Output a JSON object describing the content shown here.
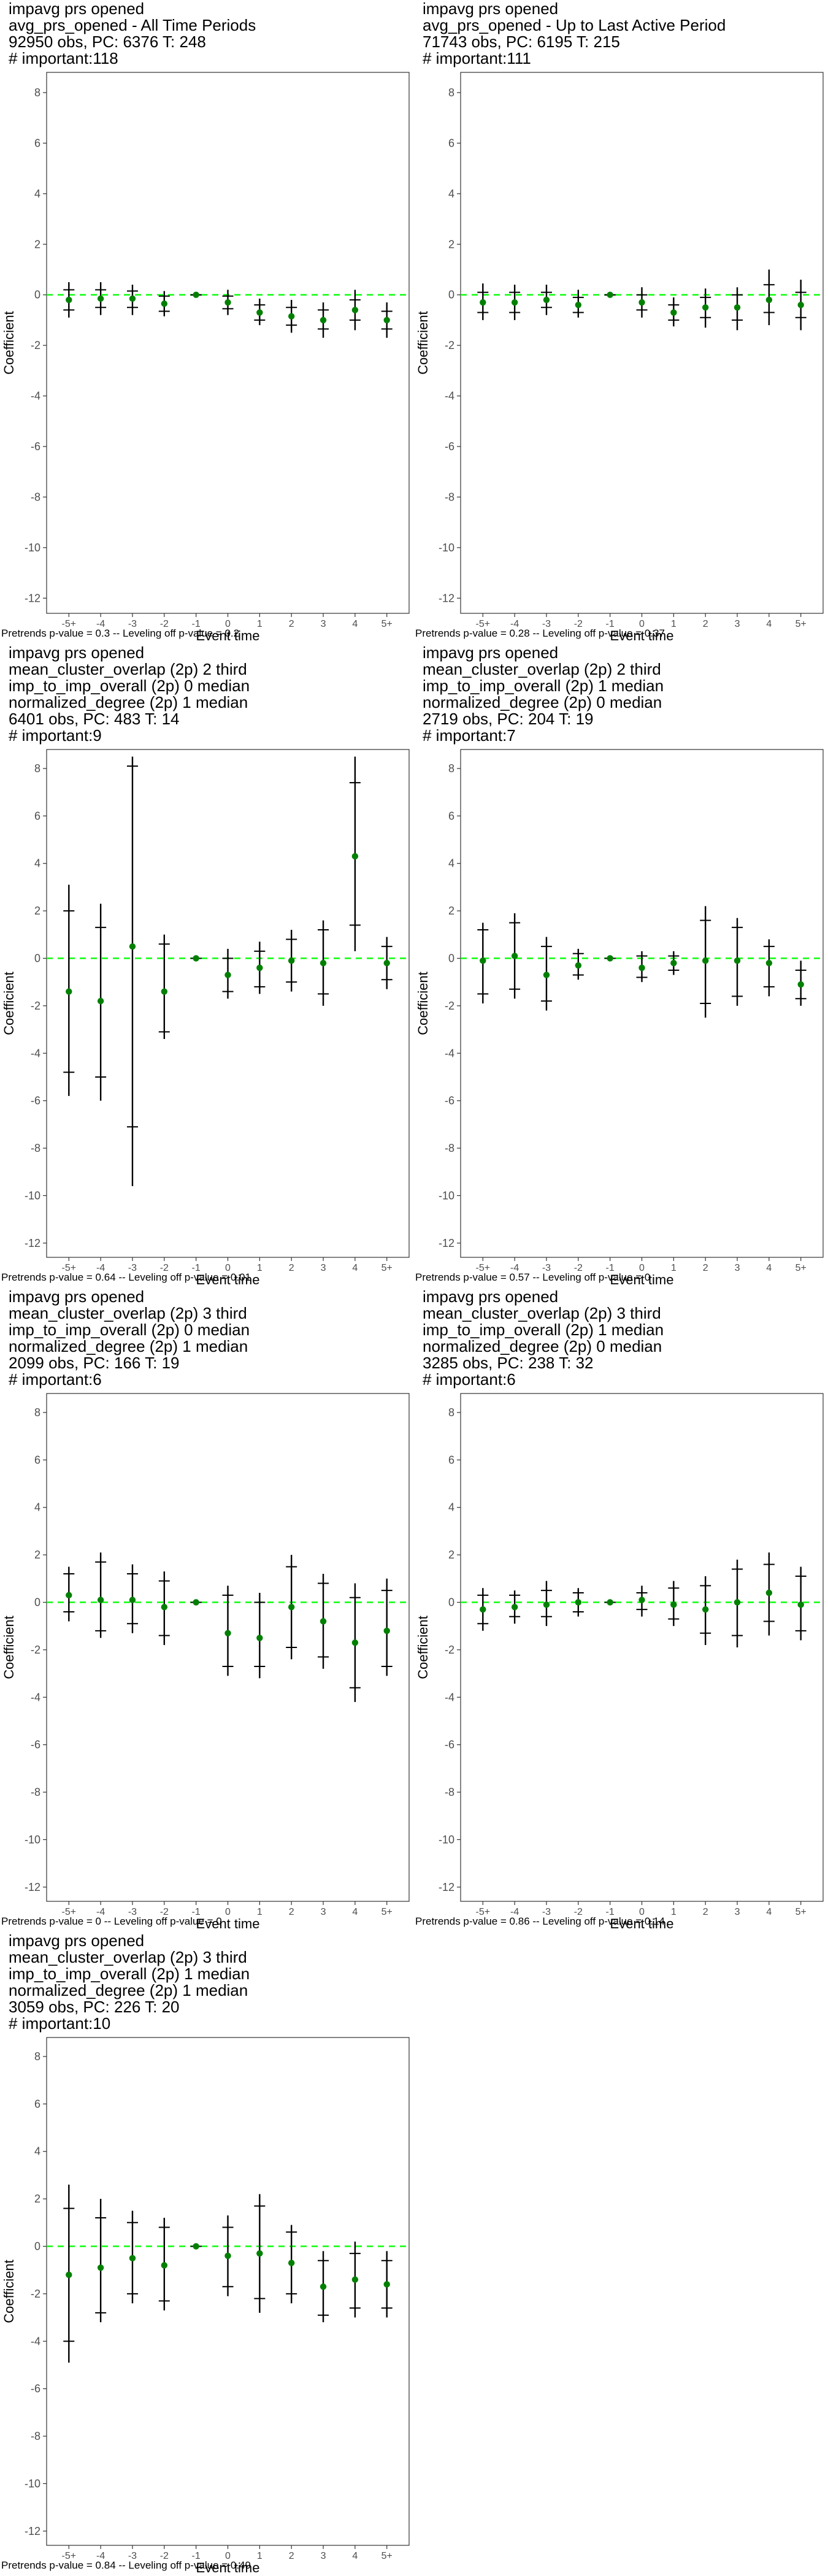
{
  "chart_data": [
    {
      "type": "scatter",
      "title_lines": [
        " impavg prs opened",
        "avg_prs_opened - All Time Periods",
        "92950 obs, PC: 6376 T: 248",
        "# important:118"
      ],
      "caption": "Pretrends p-value = 0.3 -- Leveling off p-value = 0.2",
      "xlabel": "Event time",
      "ylabel": "Coefficient",
      "categories": [
        "-5+",
        "-4",
        "-3",
        "-2",
        "-1",
        "0",
        "1",
        "2",
        "3",
        "4",
        "5+"
      ],
      "yticks": [
        8,
        6,
        4,
        2,
        0,
        -2,
        -4,
        -6,
        -8,
        -10,
        -12
      ],
      "ylim": [
        -12.6,
        8.8
      ],
      "series": [
        {
          "values": [
            -0.2,
            -0.15,
            -0.15,
            -0.35,
            0,
            -0.3,
            -0.7,
            -0.85,
            -1.0,
            -0.6,
            -1.0
          ],
          "ci_outer": [
            [
              -0.9,
              0.5
            ],
            [
              -0.8,
              0.5
            ],
            [
              -0.8,
              0.4
            ],
            [
              -0.85,
              0.15
            ],
            [
              0,
              0
            ],
            [
              -0.8,
              0.2
            ],
            [
              -1.2,
              -0.15
            ],
            [
              -1.5,
              -0.2
            ],
            [
              -1.7,
              -0.3
            ],
            [
              -1.4,
              0.2
            ],
            [
              -1.7,
              -0.3
            ]
          ],
          "ci_inner": [
            [
              -0.6,
              0.2
            ],
            [
              -0.5,
              0.2
            ],
            [
              -0.5,
              0.15
            ],
            [
              -0.65,
              -0.05
            ],
            [
              0,
              0
            ],
            [
              -0.55,
              -0.05
            ],
            [
              -1.0,
              -0.4
            ],
            [
              -1.2,
              -0.5
            ],
            [
              -1.35,
              -0.6
            ],
            [
              -1.0,
              -0.2
            ],
            [
              -1.35,
              -0.65
            ]
          ]
        }
      ]
    },
    {
      "type": "scatter",
      "title_lines": [
        " impavg prs opened",
        "avg_prs_opened - Up to Last Active Period",
        "71743 obs, PC: 6195 T: 215",
        "# important:111"
      ],
      "caption": "Pretrends p-value = 0.28 -- Leveling off p-value = 0.37",
      "xlabel": "Event time",
      "ylabel": "Coefficient",
      "categories": [
        "-5+",
        "-4",
        "-3",
        "-2",
        "-1",
        "0",
        "1",
        "2",
        "3",
        "4",
        "5+"
      ],
      "yticks": [
        8,
        6,
        4,
        2,
        0,
        -2,
        -4,
        -6,
        -8,
        -10,
        -12
      ],
      "ylim": [
        -12.6,
        8.8
      ],
      "series": [
        {
          "values": [
            -0.3,
            -0.3,
            -0.2,
            -0.4,
            0,
            -0.3,
            -0.7,
            -0.5,
            -0.5,
            -0.2,
            -0.4
          ],
          "ci_outer": [
            [
              -1.0,
              0.45
            ],
            [
              -1.0,
              0.4
            ],
            [
              -0.8,
              0.4
            ],
            [
              -0.9,
              0.2
            ],
            [
              0,
              0
            ],
            [
              -0.9,
              0.3
            ],
            [
              -1.25,
              -0.1
            ],
            [
              -1.3,
              0.25
            ],
            [
              -1.4,
              0.3
            ],
            [
              -1.2,
              1.0
            ],
            [
              -1.4,
              0.6
            ]
          ],
          "ci_inner": [
            [
              -0.7,
              0.1
            ],
            [
              -0.7,
              0.1
            ],
            [
              -0.5,
              0.1
            ],
            [
              -0.7,
              -0.1
            ],
            [
              0,
              0
            ],
            [
              -0.6,
              0.0
            ],
            [
              -1.0,
              -0.4
            ],
            [
              -0.9,
              -0.1
            ],
            [
              -1.0,
              0.0
            ],
            [
              -0.7,
              0.4
            ],
            [
              -0.9,
              0.1
            ]
          ]
        }
      ]
    },
    {
      "type": "scatter",
      "title_lines": [
        " impavg prs opened",
        "mean_cluster_overlap (2p) 2 third",
        "imp_to_imp_overall (2p) 0 median",
        "normalized_degree (2p) 1 median",
        "6401 obs, PC: 483 T: 14",
        "# important:9"
      ],
      "caption": "Pretrends p-value = 0.64 -- Leveling off p-value = 0.01",
      "xlabel": "Event time",
      "ylabel": "Coefficient",
      "categories": [
        "-5+",
        "-4",
        "-3",
        "-2",
        "-1",
        "0",
        "1",
        "2",
        "3",
        "4",
        "5+"
      ],
      "yticks": [
        8,
        6,
        4,
        2,
        0,
        -2,
        -4,
        -6,
        -8,
        -10,
        -12
      ],
      "ylim": [
        -12.6,
        8.8
      ],
      "series": [
        {
          "values": [
            -1.4,
            -1.8,
            0.5,
            -1.4,
            0,
            -0.7,
            -0.4,
            -0.1,
            -0.2,
            4.3,
            -0.2
          ],
          "ci_outer": [
            [
              -5.8,
              3.1
            ],
            [
              -6.0,
              2.3
            ],
            [
              -9.6,
              8.5
            ],
            [
              -3.4,
              1.0
            ],
            [
              0,
              0
            ],
            [
              -1.7,
              0.4
            ],
            [
              -1.5,
              0.7
            ],
            [
              -1.4,
              1.2
            ],
            [
              -2.0,
              1.6
            ],
            [
              0.3,
              8.5
            ],
            [
              -1.3,
              0.9
            ]
          ],
          "ci_inner": [
            [
              -4.8,
              2.0
            ],
            [
              -5.0,
              1.3
            ],
            [
              -7.1,
              8.1
            ],
            [
              -3.1,
              0.6
            ],
            [
              0,
              0
            ],
            [
              -1.4,
              0.0
            ],
            [
              -1.2,
              0.3
            ],
            [
              -1.0,
              0.8
            ],
            [
              -1.5,
              1.2
            ],
            [
              1.4,
              7.4
            ],
            [
              -0.9,
              0.5
            ]
          ]
        }
      ]
    },
    {
      "type": "scatter",
      "title_lines": [
        " impavg prs opened",
        "mean_cluster_overlap (2p) 2 third",
        "imp_to_imp_overall (2p) 1 median",
        "normalized_degree (2p) 0 median",
        "2719 obs, PC: 204 T: 19",
        "# important:7"
      ],
      "caption": "Pretrends p-value = 0.57 -- Leveling off p-value = 0",
      "xlabel": "Event time",
      "ylabel": "Coefficient",
      "categories": [
        "-5+",
        "-4",
        "-3",
        "-2",
        "-1",
        "0",
        "1",
        "2",
        "3",
        "4",
        "5+"
      ],
      "yticks": [
        8,
        6,
        4,
        2,
        0,
        -2,
        -4,
        -6,
        -8,
        -10,
        -12
      ],
      "ylim": [
        -12.6,
        8.8
      ],
      "series": [
        {
          "values": [
            -0.1,
            0.1,
            -0.7,
            -0.3,
            0,
            -0.4,
            -0.2,
            -0.1,
            -0.1,
            -0.2,
            -1.1
          ],
          "ci_outer": [
            [
              -1.9,
              1.5
            ],
            [
              -1.7,
              1.9
            ],
            [
              -2.2,
              0.9
            ],
            [
              -0.9,
              0.4
            ],
            [
              0,
              0
            ],
            [
              -1.0,
              0.3
            ],
            [
              -0.7,
              0.3
            ],
            [
              -2.5,
              2.2
            ],
            [
              -2.0,
              1.7
            ],
            [
              -1.6,
              0.8
            ],
            [
              -2.0,
              -0.1
            ]
          ],
          "ci_inner": [
            [
              -1.5,
              1.2
            ],
            [
              -1.3,
              1.5
            ],
            [
              -1.8,
              0.5
            ],
            [
              -0.7,
              0.2
            ],
            [
              0,
              0
            ],
            [
              -0.8,
              0.1
            ],
            [
              -0.5,
              0.1
            ],
            [
              -1.9,
              1.6
            ],
            [
              -1.6,
              1.3
            ],
            [
              -1.2,
              0.5
            ],
            [
              -1.7,
              -0.5
            ]
          ]
        }
      ]
    },
    {
      "type": "scatter",
      "title_lines": [
        " impavg prs opened",
        "mean_cluster_overlap (2p) 3 third",
        "imp_to_imp_overall (2p) 0 median",
        "normalized_degree (2p) 1 median",
        "2099 obs, PC: 166 T: 19",
        "# important:6"
      ],
      "caption": "Pretrends p-value = 0 -- Leveling off p-value = 0",
      "xlabel": "Event time",
      "ylabel": "Coefficient",
      "categories": [
        "-5+",
        "-4",
        "-3",
        "-2",
        "-1",
        "0",
        "1",
        "2",
        "3",
        "4",
        "5+"
      ],
      "yticks": [
        8,
        6,
        4,
        2,
        0,
        -2,
        -4,
        -6,
        -8,
        -10,
        -12
      ],
      "ylim": [
        -12.6,
        8.8
      ],
      "series": [
        {
          "values": [
            0.3,
            0.1,
            0.1,
            -0.2,
            0,
            -1.3,
            -1.5,
            -0.2,
            -0.8,
            -1.7,
            -1.2
          ],
          "ci_outer": [
            [
              -0.8,
              1.5
            ],
            [
              -1.5,
              2.1
            ],
            [
              -1.3,
              1.6
            ],
            [
              -1.8,
              1.3
            ],
            [
              0,
              0
            ],
            [
              -3.1,
              0.7
            ],
            [
              -3.2,
              0.4
            ],
            [
              -2.4,
              2.0
            ],
            [
              -2.8,
              1.2
            ],
            [
              -4.2,
              0.8
            ],
            [
              -3.1,
              1.0
            ]
          ],
          "ci_inner": [
            [
              -0.4,
              1.2
            ],
            [
              -1.2,
              1.7
            ],
            [
              -0.9,
              1.2
            ],
            [
              -1.4,
              0.9
            ],
            [
              0,
              0
            ],
            [
              -2.7,
              0.3
            ],
            [
              -2.7,
              0.0
            ],
            [
              -1.9,
              1.5
            ],
            [
              -2.3,
              0.8
            ],
            [
              -3.6,
              0.2
            ],
            [
              -2.7,
              0.5
            ]
          ]
        }
      ]
    },
    {
      "type": "scatter",
      "title_lines": [
        " impavg prs opened",
        "mean_cluster_overlap (2p) 3 third",
        "imp_to_imp_overall (2p) 1 median",
        "normalized_degree (2p) 0 median",
        "3285 obs, PC: 238 T: 32",
        "# important:6"
      ],
      "caption": "Pretrends p-value = 0.86 -- Leveling off p-value = 0.14",
      "xlabel": "Event time",
      "ylabel": "Coefficient",
      "categories": [
        "-5+",
        "-4",
        "-3",
        "-2",
        "-1",
        "0",
        "1",
        "2",
        "3",
        "4",
        "5+"
      ],
      "yticks": [
        8,
        6,
        4,
        2,
        0,
        -2,
        -4,
        -6,
        -8,
        -10,
        -12
      ],
      "ylim": [
        -12.6,
        8.8
      ],
      "series": [
        {
          "values": [
            -0.3,
            -0.2,
            -0.1,
            0.0,
            0,
            0.1,
            -0.1,
            -0.3,
            0.0,
            0.4,
            -0.1
          ],
          "ci_outer": [
            [
              -1.2,
              0.6
            ],
            [
              -0.9,
              0.5
            ],
            [
              -1.0,
              0.9
            ],
            [
              -0.6,
              0.6
            ],
            [
              0,
              0
            ],
            [
              -0.6,
              0.7
            ],
            [
              -1.0,
              0.9
            ],
            [
              -1.8,
              1.1
            ],
            [
              -1.9,
              1.8
            ],
            [
              -1.4,
              2.1
            ],
            [
              -1.6,
              1.5
            ]
          ],
          "ci_inner": [
            [
              -0.9,
              0.3
            ],
            [
              -0.6,
              0.3
            ],
            [
              -0.6,
              0.5
            ],
            [
              -0.4,
              0.4
            ],
            [
              0,
              0
            ],
            [
              -0.3,
              0.4
            ],
            [
              -0.7,
              0.6
            ],
            [
              -1.3,
              0.7
            ],
            [
              -1.4,
              1.4
            ],
            [
              -0.8,
              1.6
            ],
            [
              -1.2,
              1.1
            ]
          ]
        }
      ]
    },
    {
      "type": "scatter",
      "title_lines": [
        " impavg prs opened",
        "mean_cluster_overlap (2p) 3 third",
        "imp_to_imp_overall (2p) 1 median",
        "normalized_degree (2p) 1 median",
        "3059 obs, PC: 226 T: 20",
        "# important:10"
      ],
      "caption": "Pretrends p-value = 0.84 -- Leveling off p-value = 0.49",
      "xlabel": "Event time",
      "ylabel": "Coefficient",
      "categories": [
        "-5+",
        "-4",
        "-3",
        "-2",
        "-1",
        "0",
        "1",
        "2",
        "3",
        "4",
        "5+"
      ],
      "yticks": [
        8,
        6,
        4,
        2,
        0,
        -2,
        -4,
        -6,
        -8,
        -10,
        -12
      ],
      "ylim": [
        -12.6,
        8.8
      ],
      "series": [
        {
          "values": [
            -1.2,
            -0.9,
            -0.5,
            -0.8,
            0,
            -0.4,
            -0.3,
            -0.7,
            -1.7,
            -1.4,
            -1.6
          ],
          "ci_outer": [
            [
              -4.9,
              2.6
            ],
            [
              -3.2,
              2.0
            ],
            [
              -2.4,
              1.5
            ],
            [
              -2.7,
              1.2
            ],
            [
              0,
              0
            ],
            [
              -2.1,
              1.3
            ],
            [
              -2.8,
              2.2
            ],
            [
              -2.4,
              0.9
            ],
            [
              -3.2,
              -0.2
            ],
            [
              -3.0,
              0.2
            ],
            [
              -3.0,
              -0.2
            ]
          ],
          "ci_inner": [
            [
              -4.0,
              1.6
            ],
            [
              -2.8,
              1.2
            ],
            [
              -2.0,
              1.0
            ],
            [
              -2.3,
              0.8
            ],
            [
              0,
              0
            ],
            [
              -1.7,
              0.8
            ],
            [
              -2.2,
              1.7
            ],
            [
              -2.0,
              0.6
            ],
            [
              -2.9,
              -0.6
            ],
            [
              -2.6,
              -0.3
            ],
            [
              -2.6,
              -0.6
            ]
          ]
        }
      ]
    }
  ]
}
